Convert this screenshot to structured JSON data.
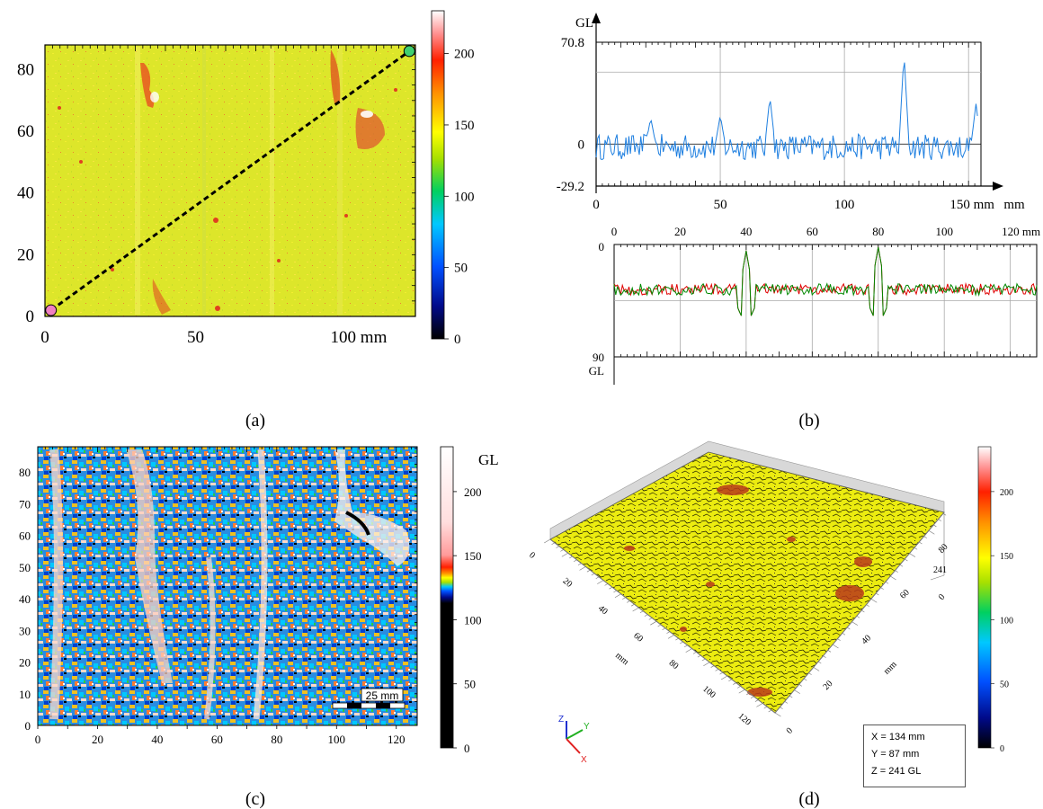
{
  "captions": [
    "(a)",
    "(b)",
    "(c)",
    "(d)"
  ],
  "panel_a": {
    "type": "heatmap",
    "x_ticks": [
      "0",
      "50",
      "100 mm"
    ],
    "y_ticks": [
      "0",
      "20",
      "40",
      "60",
      "80"
    ],
    "xlim": [
      0,
      123
    ],
    "ylim": [
      0,
      88
    ],
    "profile_line": {
      "from": [
        2,
        2
      ],
      "to": [
        121,
        86
      ]
    },
    "colorbar_ticks": [
      "0",
      "50",
      "100",
      "150",
      "200"
    ],
    "colorbar_range": [
      0,
      230
    ]
  },
  "panel_b_top": {
    "type": "line",
    "ylabel": "GL",
    "xlabel": "mm",
    "y_ticks": [
      "70.8",
      "0",
      "-29.2"
    ],
    "x_ticks": [
      "0",
      "50",
      "100",
      "150 mm"
    ],
    "xlim": [
      0,
      155
    ],
    "ylim": [
      -29.2,
      70.8
    ],
    "color": "#1e7fe0",
    "peaks": [
      [
        22,
        18
      ],
      [
        50,
        20
      ],
      [
        70,
        33
      ],
      [
        124,
        63
      ],
      [
        153,
        28
      ]
    ]
  },
  "panel_b_bottom": {
    "type": "line",
    "ylabel": "GL",
    "x_ticks": [
      "0",
      "20",
      "40",
      "60",
      "80",
      "100",
      "120 mm"
    ],
    "y_ticks": [
      "0",
      "90"
    ],
    "xlim": [
      0,
      128
    ],
    "ylim": [
      0,
      90
    ],
    "series": [
      {
        "color": "#e00000"
      },
      {
        "color": "#008800"
      }
    ],
    "peaks": [
      [
        40,
        5
      ],
      [
        80,
        2
      ]
    ]
  },
  "panel_c": {
    "type": "heatmap",
    "x_ticks": [
      "0",
      "20",
      "40",
      "60",
      "80",
      "100",
      "120"
    ],
    "y_ticks": [
      "0",
      "10",
      "20",
      "30",
      "40",
      "50",
      "60",
      "70",
      "80"
    ],
    "colorbar_ticks": [
      "0",
      "50",
      "100",
      "150",
      "200"
    ],
    "colorbar_unit": "GL",
    "scale_bar_label": "25 mm"
  },
  "panel_d": {
    "x_axis_ticks": [
      "0",
      "20",
      "40",
      "60",
      "80",
      "100",
      "120"
    ],
    "x_axis_unit": "mm",
    "y_axis_ticks": [
      "0",
      "20",
      "40",
      "60",
      "80"
    ],
    "y_axis_unit": "mm",
    "z_label_top": "241",
    "z_label_zero": "0",
    "colorbar_ticks": [
      "0",
      "50",
      "100",
      "150",
      "200"
    ],
    "axes_gizmo": {
      "x": "X",
      "y": "Y",
      "z": "Z"
    },
    "readout": {
      "x": "X = 134 mm",
      "y": "Y = 87 mm",
      "z": "Z = 241 GL"
    }
  }
}
